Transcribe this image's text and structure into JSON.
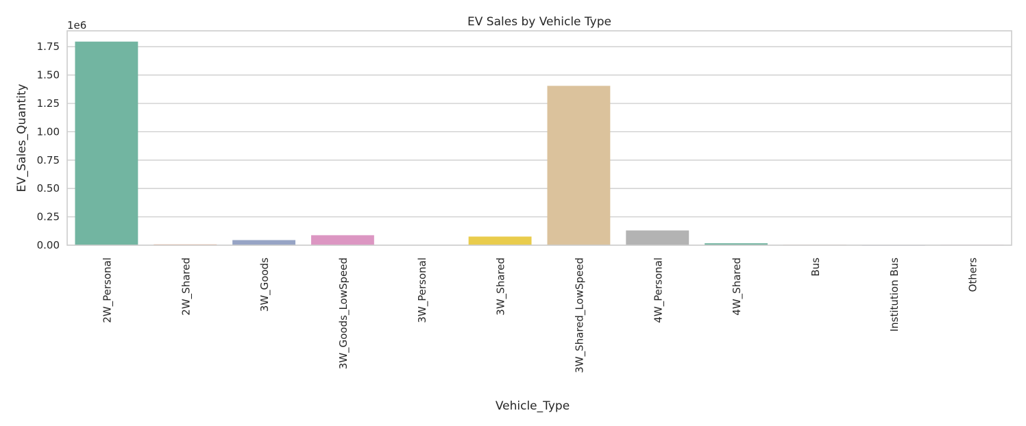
{
  "chart_data": {
    "type": "bar",
    "title": "EV Sales by Vehicle Type",
    "xlabel": "Vehicle_Type",
    "ylabel": "EV_Sales_Quantity",
    "offset_label": "1e6",
    "categories": [
      "2W_Personal",
      "2W_Shared",
      "3W_Goods",
      "3W_Goods_LowSpeed",
      "3W_Personal",
      "3W_Shared",
      "3W_Shared_LowSpeed",
      "4W_Personal",
      "4W_Shared",
      "Bus",
      "Institution Bus",
      "Others"
    ],
    "values": [
      1795000,
      7000,
      45000,
      88000,
      2000,
      76000,
      1405000,
      130000,
      17000,
      4000,
      500,
      4000
    ],
    "colors": [
      "#72b5a1",
      "#ee9b77",
      "#97a4c5",
      "#dc96c2",
      "#b4d775",
      "#e9cc4c",
      "#dbc29c",
      "#b3b3b3",
      "#72b5a1",
      "#ee9b77",
      "#97a4c5",
      "#dc96c2"
    ],
    "yticks": [
      "0.00",
      "0.25",
      "0.50",
      "0.75",
      "1.00",
      "1.25",
      "1.50",
      "1.75"
    ],
    "ylim": [
      0,
      1890000
    ],
    "grid": true
  }
}
